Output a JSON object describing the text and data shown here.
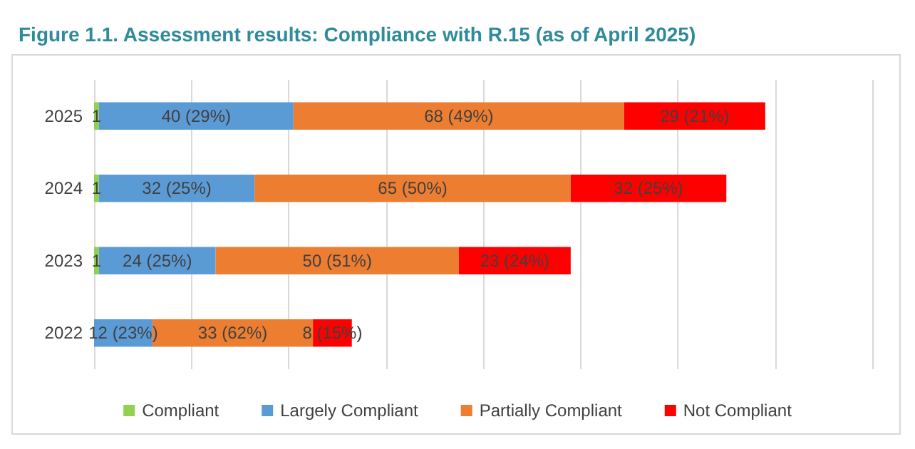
{
  "chart_data": {
    "type": "bar",
    "orientation": "horizontal",
    "stacked": true,
    "title": "Figure 1.1. Assessment results: Compliance with R.15 (as of April 2025)",
    "categories": [
      "2025",
      "2024",
      "2023",
      "2022"
    ],
    "series": [
      {
        "name": "Compliant",
        "color": "#92d050",
        "values": [
          1,
          1,
          1,
          0
        ],
        "value_labels": [
          "1",
          "1",
          "1",
          null
        ]
      },
      {
        "name": "Largely Compliant",
        "color": "#5b9bd5",
        "values": [
          40,
          32,
          24,
          12
        ],
        "value_labels": [
          "40 (29%)",
          "32 (25%)",
          "24 (25%)",
          "12 (23%)"
        ]
      },
      {
        "name": "Partially Compliant",
        "color": "#ed7d31",
        "values": [
          68,
          65,
          50,
          33
        ],
        "value_labels": [
          "68 (49%)",
          "65 (50%)",
          "50 (51%)",
          "33 (62%)"
        ]
      },
      {
        "name": "Not Compliant",
        "color": "#ff0000",
        "values": [
          29,
          32,
          23,
          8
        ],
        "value_labels": [
          "29 (21%)",
          "32 (25%)",
          "23 (24%)",
          "8 (15%)"
        ]
      }
    ],
    "xlim": [
      0,
      160
    ],
    "xticks": [
      {
        "value": 0,
        "label": null
      },
      {
        "value": 20,
        "label": null
      },
      {
        "value": 40,
        "label": null
      },
      {
        "value": 60,
        "label": null
      },
      {
        "value": 80,
        "label": null
      },
      {
        "value": 100,
        "label": null
      },
      {
        "value": 120,
        "label": null
      },
      {
        "value": 140,
        "label": null
      },
      {
        "value": 160,
        "label": null
      }
    ],
    "tick_labels": "y",
    "grid": "x",
    "legend": "bottom"
  }
}
